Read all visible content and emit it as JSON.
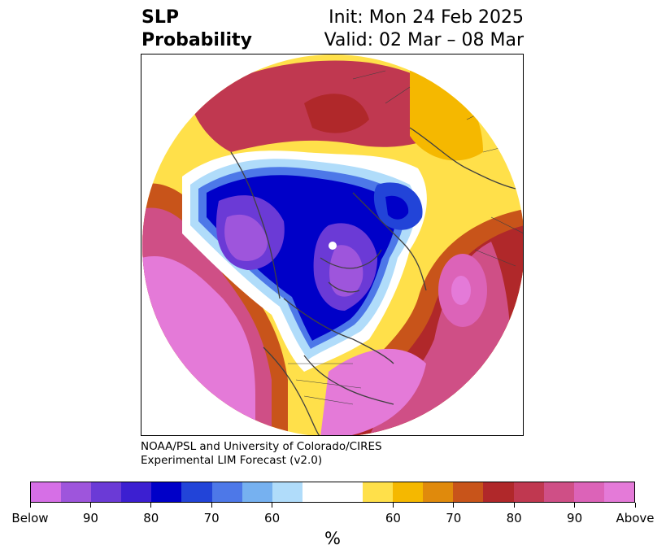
{
  "title": {
    "left_line1": "SLP",
    "left_line2": "Probability",
    "right_line1": "Init: Mon 24 Feb 2025",
    "right_line2": "Valid: 02 Mar – 08 Mar"
  },
  "credit": {
    "line1": "NOAA/PSL and University of Colorado/CIRES",
    "line2": "Experimental LIM Forecast (v2.0)"
  },
  "colorbar": {
    "colors": [
      "#d66fe6",
      "#9e55dc",
      "#6b3ad6",
      "#3c1fd1",
      "#0000c8",
      "#2244d8",
      "#4d78e8",
      "#76b1f0",
      "#b0dcfa",
      "#ffffff",
      "#ffffff",
      "#ffe04a",
      "#f5b800",
      "#e08a0c",
      "#c8541a",
      "#b0282a",
      "#c03850",
      "#cf4f86",
      "#dc63b8",
      "#e47ad8"
    ],
    "ticks": [
      "Below",
      "90",
      "80",
      "70",
      "60",
      "60",
      "70",
      "80",
      "90",
      "Above"
    ],
    "unit": "%"
  },
  "map": {
    "regions": [
      {
        "name": "arctic-russia-above",
        "category": "above-80"
      },
      {
        "name": "north-pacific-above",
        "category": "above"
      },
      {
        "name": "north-atlantic-above",
        "category": "above-90"
      },
      {
        "name": "arctic-siberia-below",
        "category": "below-90"
      },
      {
        "name": "canada-arctic-below",
        "category": "below-90"
      },
      {
        "name": "scandinavia-below",
        "category": "below-80"
      }
    ],
    "coast_color": "#404040"
  }
}
